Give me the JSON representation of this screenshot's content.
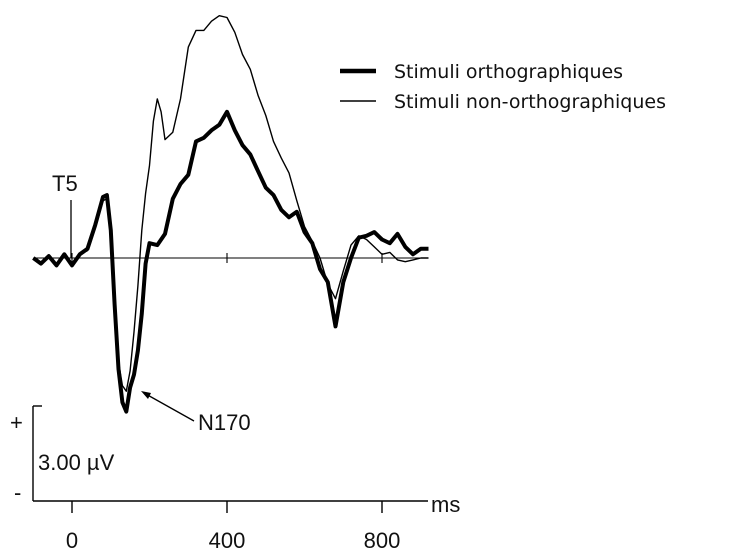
{
  "chart_data": {
    "type": "line",
    "title": "",
    "xlabel": "ms",
    "ylabel": "",
    "xlim": [
      -100,
      950
    ],
    "x_ticks": [
      0,
      400,
      800
    ],
    "x_tick_labels": [
      "0",
      "400",
      "800"
    ],
    "y_unit": "µV",
    "y_polarity": "negative-down",
    "y_scale_bar": {
      "value": 3.0,
      "label": "3.00 µV",
      "plus": "+",
      "minus": "-"
    },
    "electrode_label": "T5",
    "grid": false,
    "legend_position": "top-right",
    "series": [
      {
        "name": "Stimuli orthographiques",
        "style": "thick",
        "color": "#000000",
        "x": [
          -100,
          -80,
          -60,
          -40,
          -20,
          0,
          20,
          40,
          60,
          80,
          90,
          100,
          110,
          120,
          130,
          140,
          150,
          160,
          170,
          180,
          190,
          200,
          220,
          240,
          260,
          280,
          300,
          320,
          340,
          360,
          380,
          400,
          420,
          440,
          460,
          480,
          500,
          520,
          540,
          560,
          580,
          600,
          620,
          640,
          660,
          680,
          700,
          720,
          740,
          760,
          780,
          800,
          820,
          840,
          860,
          880,
          900,
          920
        ],
        "y": [
          0.0,
          -0.3,
          0.1,
          -0.4,
          0.2,
          -0.4,
          0.2,
          0.5,
          1.8,
          3.3,
          3.4,
          1.5,
          -2.5,
          -6.0,
          -7.8,
          -8.3,
          -7.0,
          -6.3,
          -5.0,
          -3.0,
          -0.3,
          0.8,
          0.7,
          1.3,
          3.2,
          4.0,
          4.5,
          6.3,
          6.5,
          6.9,
          7.2,
          7.9,
          6.9,
          6.1,
          5.6,
          4.7,
          3.8,
          3.4,
          2.6,
          2.2,
          2.5,
          1.4,
          0.8,
          -0.6,
          -1.3,
          -3.7,
          -1.3,
          0.0,
          1.1,
          1.2,
          1.4,
          1.0,
          0.8,
          1.3,
          0.6,
          0.2,
          0.5,
          0.5
        ]
      },
      {
        "name": "Stimuli non-orthographiques",
        "style": "thin",
        "color": "#000000",
        "x": [
          -100,
          -80,
          -60,
          -40,
          -20,
          0,
          20,
          40,
          60,
          80,
          90,
          100,
          110,
          120,
          130,
          140,
          150,
          160,
          170,
          180,
          190,
          200,
          210,
          220,
          230,
          240,
          260,
          280,
          300,
          320,
          340,
          360,
          380,
          400,
          420,
          440,
          460,
          480,
          500,
          520,
          540,
          560,
          580,
          600,
          620,
          640,
          660,
          680,
          700,
          720,
          740,
          760,
          780,
          800,
          820,
          840,
          860,
          880,
          900,
          920
        ],
        "y": [
          0.0,
          -0.3,
          0.1,
          -0.3,
          0.2,
          -0.3,
          0.2,
          0.4,
          1.6,
          3.1,
          3.2,
          1.2,
          -2.5,
          -5.6,
          -6.9,
          -7.2,
          -6.1,
          -4.0,
          -1.5,
          1.5,
          3.5,
          5.0,
          7.4,
          8.6,
          7.9,
          6.4,
          6.8,
          8.6,
          11.4,
          12.3,
          12.3,
          12.8,
          13.1,
          13.0,
          12.2,
          11.0,
          10.2,
          8.8,
          7.7,
          6.3,
          5.4,
          4.6,
          3.1,
          1.7,
          0.9,
          0.0,
          -1.4,
          -2.2,
          -0.7,
          0.7,
          1.2,
          1.0,
          0.6,
          0.2,
          0.3,
          -0.1,
          -0.2,
          -0.1,
          0.0,
          0.0
        ]
      }
    ]
  }
}
